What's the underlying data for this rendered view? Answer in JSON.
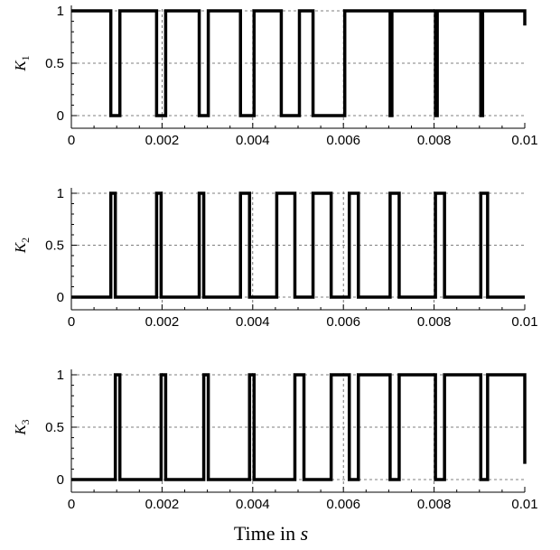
{
  "chart_data": [
    {
      "type": "line",
      "ylabel_main": "K",
      "ylabel_sub": "1",
      "xlim": [
        0,
        0.01
      ],
      "ylim": [
        0,
        1
      ],
      "x_ticks": [
        "0",
        "0.002",
        "0.004",
        "0.006",
        "0.008",
        "0.01"
      ],
      "y_ticks": [
        "0",
        "0.5",
        "1"
      ],
      "grid": "dashed",
      "initial_value": 1,
      "transitions": [
        0.00087,
        0.00107,
        0.00188,
        0.00208,
        0.00282,
        0.00302,
        0.00373,
        0.00403,
        0.00463,
        0.00503,
        0.00533,
        0.00603,
        0.00703,
        0.00707,
        0.00803,
        0.00807,
        0.00903,
        0.00907,
        0.01
      ],
      "end_value": 0.86
    },
    {
      "type": "line",
      "ylabel_main": "K",
      "ylabel_sub": "2",
      "xlim": [
        0,
        0.01
      ],
      "ylim": [
        0,
        1
      ],
      "x_ticks": [
        "0",
        "0.002",
        "0.004",
        "0.006",
        "0.008",
        "0.01"
      ],
      "y_ticks": [
        "0",
        "0.5",
        "1"
      ],
      "grid": "dashed",
      "initial_value": 0,
      "transitions": [
        0.00087,
        0.00097,
        0.00188,
        0.00198,
        0.00282,
        0.00292,
        0.00373,
        0.00393,
        0.00453,
        0.00493,
        0.00533,
        0.00573,
        0.00613,
        0.00633,
        0.00703,
        0.00723,
        0.00803,
        0.00823,
        0.00903,
        0.00918
      ],
      "end_value": 0
    },
    {
      "type": "line",
      "ylabel_main": "K",
      "ylabel_sub": "3",
      "xlim": [
        0,
        0.01
      ],
      "ylim": [
        0,
        1
      ],
      "x_ticks": [
        "0",
        "0.002",
        "0.004",
        "0.006",
        "0.008",
        "0.01"
      ],
      "y_ticks": [
        "0",
        "0.5",
        "1"
      ],
      "grid": "dashed",
      "initial_value": 0,
      "transitions": [
        0.00097,
        0.00107,
        0.00198,
        0.00208,
        0.00292,
        0.00302,
        0.00393,
        0.00403,
        0.00493,
        0.00513,
        0.00573,
        0.00613,
        0.00633,
        0.00703,
        0.00723,
        0.00803,
        0.00823,
        0.00903,
        0.00918,
        0.01
      ],
      "end_value": 0.15
    }
  ],
  "x_title_text": "Time in ",
  "x_title_var": "s"
}
